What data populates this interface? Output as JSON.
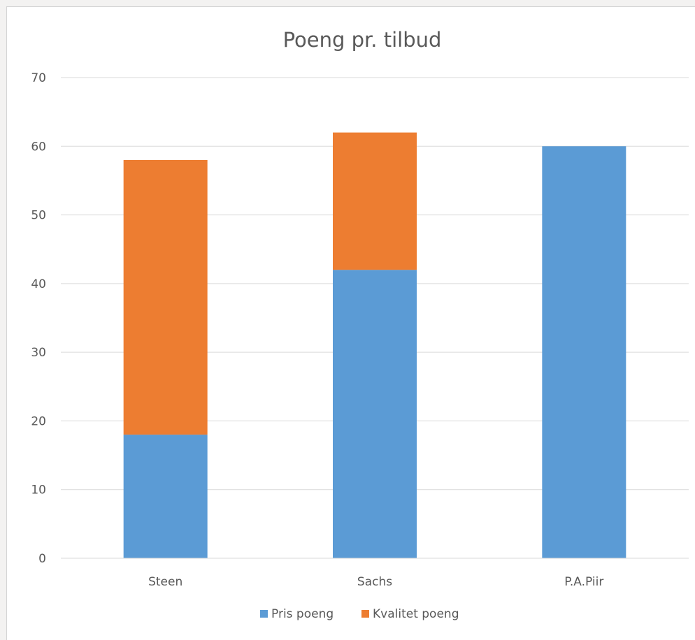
{
  "chart_data": {
    "type": "bar",
    "stacked": true,
    "title": "Poeng pr. tilbud",
    "xlabel": "",
    "ylabel": "",
    "categories": [
      "Steen",
      "Sachs",
      "P.A.Piir"
    ],
    "series": [
      {
        "name": "Pris poeng",
        "values": [
          18,
          42,
          60
        ],
        "color": "#5b9bd5"
      },
      {
        "name": "Kvalitet poeng",
        "values": [
          40,
          20,
          0
        ],
        "color": "#ed7d31"
      }
    ],
    "ylim": [
      0,
      70
    ],
    "yticks": [
      0,
      10,
      20,
      30,
      40,
      50,
      60,
      70
    ],
    "grid": true,
    "legend_position": "bottom"
  }
}
